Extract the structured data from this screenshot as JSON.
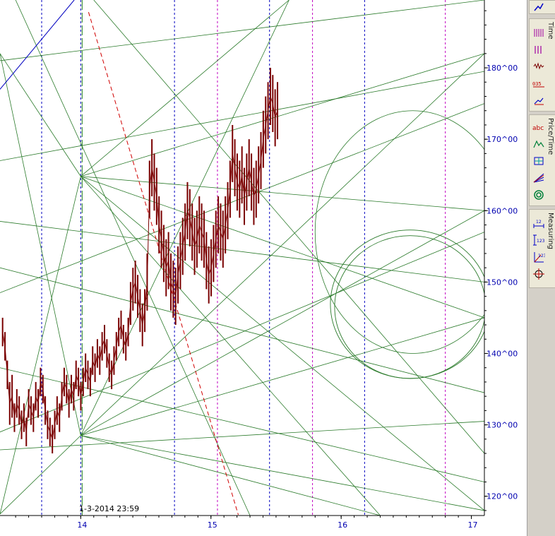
{
  "chart_data": {
    "type": "bar",
    "subtype": "ohlc-with-gann-overlay",
    "title": "",
    "xlabel": "",
    "ylabel": "",
    "x_ticks": [
      "14",
      "15",
      "16",
      "17"
    ],
    "y_ticks": [
      "120^00",
      "130^00",
      "140^00",
      "150^00",
      "160^00",
      "170^00",
      "180^00"
    ],
    "y_tick_values": [
      120,
      130,
      140,
      150,
      160,
      170,
      180
    ],
    "ylim": [
      117.3,
      189.5
    ],
    "xlim": [
      13.38,
      17.1
    ],
    "cursor_label": "1-3-2014 23:59",
    "series": [
      {
        "kind": "price",
        "color": "#7a0000",
        "x_start": 13.4,
        "x_step": 0.0182,
        "values": [
          143,
          141,
          137,
          133,
          134,
          131,
          133,
          132,
          130,
          131,
          129,
          133,
          132,
          131,
          134,
          133,
          136,
          135,
          132,
          130,
          129,
          128,
          130,
          132,
          131,
          134,
          136,
          135,
          133,
          135,
          134,
          137,
          136,
          134,
          136,
          138,
          137,
          136,
          139,
          138,
          140,
          139,
          141,
          142,
          140,
          138,
          137,
          139,
          141,
          143,
          144,
          142,
          141,
          143,
          147,
          149,
          150,
          148,
          146,
          144,
          146,
          150,
          163,
          166,
          164,
          162,
          158,
          156,
          154,
          152,
          153,
          150,
          149,
          148,
          151,
          153,
          155,
          157,
          160,
          159,
          157,
          155,
          156,
          158,
          157,
          156,
          153,
          151,
          152,
          154,
          156,
          158,
          157,
          156,
          158,
          160,
          163,
          168,
          166,
          164,
          163,
          165,
          162,
          164,
          166,
          164,
          162,
          163,
          165,
          167,
          170,
          172,
          174,
          176,
          175,
          173,
          174
        ],
        "band": [
          0,
          2,
          2,
          3,
          3,
          2,
          2,
          2,
          2,
          2,
          2,
          2,
          2,
          2,
          2,
          2,
          2,
          2,
          2,
          2,
          2,
          2,
          2,
          2,
          2,
          2,
          2,
          2,
          2,
          2,
          2,
          2,
          2,
          2,
          2,
          2,
          2,
          2,
          2,
          2,
          2,
          2,
          2,
          2,
          2,
          2,
          2,
          2,
          2,
          2,
          2,
          2,
          2,
          2,
          3,
          3,
          3,
          3,
          3,
          3,
          3,
          4,
          4,
          4,
          4,
          4,
          4,
          4,
          4,
          4,
          4,
          4,
          4,
          4,
          4,
          4,
          4,
          4,
          4,
          4,
          4,
          4,
          4,
          4,
          4,
          4,
          4,
          4,
          4,
          4,
          4,
          4,
          4,
          4,
          4,
          4,
          4,
          4,
          4,
          4,
          4,
          4,
          4,
          4,
          4,
          4,
          4,
          4,
          4,
          4,
          4,
          4,
          4,
          4,
          4,
          4,
          4
        ]
      }
    ],
    "time_lines": {
      "blue": [
        13.7,
        14.0,
        14.72,
        15.45,
        16.18
      ],
      "magenta": [
        15.05,
        15.78,
        16.8
      ]
    },
    "lines": [
      {
        "color": "#2a7a2a",
        "p1": [
          13.38,
          138.0
        ],
        "p2": [
          17.1,
          122.0
        ]
      },
      {
        "color": "#2a7a2a",
        "p1": [
          13.38,
          148.5
        ],
        "p2": [
          17.1,
          175.0
        ]
      },
      {
        "color": "#2a7a2a",
        "p1": [
          13.38,
          167.0
        ],
        "p2": [
          17.1,
          179.5
        ]
      },
      {
        "color": "#2a7a2a",
        "p1": [
          13.38,
          129.0
        ],
        "p2": [
          17.1,
          157.0
        ]
      },
      {
        "color": "#2a7a2a",
        "p1": [
          13.38,
          158.5
        ],
        "p2": [
          17.1,
          150.0
        ]
      },
      {
        "color": "#2a7a2a",
        "p1": [
          13.38,
          126.5
        ],
        "p2": [
          17.1,
          130.5
        ]
      },
      {
        "color": "#2a7a2a",
        "p1": [
          13.5,
          189.5
        ],
        "p2": [
          15.3,
          117.3
        ]
      },
      {
        "color": "#2a7a2a",
        "p1": [
          14.1,
          189.5
        ],
        "p2": [
          17.1,
          126.0
        ]
      },
      {
        "color": "#2a7a2a",
        "p1": [
          13.38,
          152.0
        ],
        "p2": [
          17.1,
          134.5
        ]
      },
      {
        "color": "#2a7a2a",
        "p1": [
          13.38,
          181.0
        ],
        "p2": [
          17.1,
          189.5
        ]
      }
    ],
    "circles": [
      {
        "color": "#2a7a2a",
        "cx": 16.53,
        "cy": 146.5,
        "r_x": 0.58,
        "r_y": 10.0
      }
    ],
    "curves": [
      {
        "color": "#d00000",
        "dash": "6,4",
        "p1": [
          14.06,
          187.8
        ],
        "p2": [
          15.21,
          117.4
        ]
      },
      {
        "color": "#0000c0",
        "dash": "",
        "p1": [
          13.38,
          177.0
        ],
        "p2": [
          13.95,
          189.5
        ]
      }
    ],
    "grid": false
  },
  "toolbar": {
    "panels": [
      {
        "label": "Time",
        "icons": [
          "bars-vertical-icon",
          "bars-split-icon",
          "cycles-icon",
          "numbers-035-icon",
          "trend-arrow-icon"
        ]
      },
      {
        "label": "Price/Time",
        "icons": [
          "text-abc-icon",
          "wave-icon",
          "box-grid-icon",
          "fan-arrow-icon",
          "spiral-icon"
        ]
      },
      {
        "label": "Measuring",
        "icons": [
          "measure-horizontal-icon",
          "measure-vertical-icon",
          "measure-angle-icon",
          "crosshair-icon"
        ]
      }
    ],
    "top_icon": "trend-arrow-icon"
  }
}
